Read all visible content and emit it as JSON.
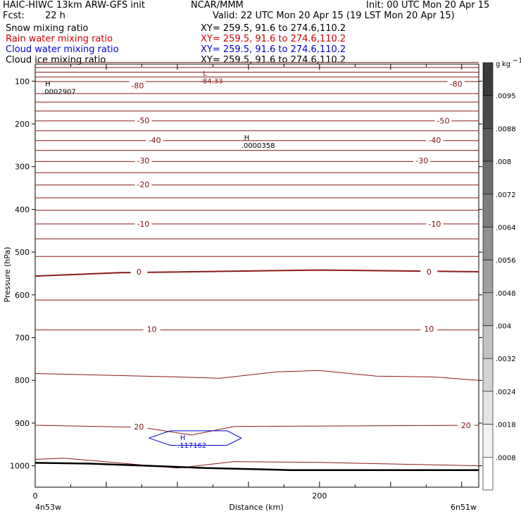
{
  "header": {
    "title_left": "HAIC-HIWC 13km ARW-GFS init",
    "title_center": "NCAR/MMM",
    "init": "Init: 00 UTC Mon 20 Apr 15",
    "fcst_label": "Fcst:",
    "fcst_value": "22 h",
    "valid": "Valid: 22 UTC Mon 20 Apr 15 (19 LST Mon 20 Apr 15)"
  },
  "fields": [
    {
      "name": "Snow mixing ratio",
      "xy": "XY= 259.5, 91.6 to 274.6,110.2",
      "color": "#000000"
    },
    {
      "name": "Rain water mixing ratio",
      "xy": "XY= 259.5, 91.6 to 274.6,110.2",
      "color": "#d00000"
    },
    {
      "name": "Cloud water mixing ratio",
      "xy": "XY= 259.5, 91.6 to 274.6,110.2",
      "color": "#0000d0"
    },
    {
      "name": "Cloud ice mixing ratio",
      "xy": "XY= 259.5, 91.6 to 274.6,110.2",
      "color": "#000000"
    }
  ],
  "chart_data": {
    "type": "cross-section contour",
    "xlabel": "Distance (km)",
    "ylabel": "Pressure (hPa)",
    "xlim": [
      0,
      312
    ],
    "ylim": [
      1050,
      60
    ],
    "x_ticks": [
      0,
      200
    ],
    "y_ticks": [
      100,
      200,
      300,
      400,
      500,
      600,
      700,
      800,
      900,
      1000
    ],
    "x_endpoint_labels": {
      "left": "4n53w",
      "right": "6n51w"
    },
    "temperature_contours": [
      {
        "label": "-80",
        "points": [
          [
            0,
            101
          ],
          [
            312,
            101
          ]
        ],
        "marks": [
          [
            72,
            110
          ],
          [
            296,
            106
          ]
        ]
      },
      {
        "label": "-50",
        "points": [
          [
            0,
            193
          ],
          [
            312,
            193
          ]
        ],
        "marks": [
          [
            76,
            192
          ],
          [
            287,
            193
          ]
        ]
      },
      {
        "label": "-40",
        "points": [
          [
            0,
            239
          ],
          [
            312,
            239
          ]
        ],
        "marks": [
          [
            84,
            238
          ],
          [
            281,
            238
          ]
        ]
      },
      {
        "label": "-30",
        "points": [
          [
            0,
            288
          ],
          [
            312,
            288
          ]
        ],
        "marks": [
          [
            76,
            286
          ],
          [
            272,
            286
          ]
        ]
      },
      {
        "label": "-20",
        "points": [
          [
            0,
            343
          ],
          [
            312,
            343
          ]
        ],
        "marks": [
          [
            76,
            342
          ],
          [
            0,
            0
          ]
        ]
      },
      {
        "label": "-10",
        "points": [
          [
            0,
            434
          ],
          [
            312,
            434
          ]
        ],
        "marks": [
          [
            76,
            434
          ],
          [
            281,
            434
          ]
        ]
      },
      {
        "label": "0",
        "points": [
          [
            0,
            556
          ],
          [
            60,
            548
          ],
          [
            200,
            542
          ],
          [
            312,
            546
          ]
        ],
        "marks": [
          [
            73,
            546
          ],
          [
            277,
            546
          ]
        ]
      },
      {
        "label": "10",
        "points": [
          [
            0,
            682
          ],
          [
            312,
            682
          ]
        ],
        "marks": [
          [
            82,
            680
          ],
          [
            277,
            679
          ]
        ]
      },
      {
        "label": "20",
        "points": [
          [
            0,
            905
          ],
          [
            75,
            910
          ],
          [
            110,
            928
          ],
          [
            140,
            908
          ],
          [
            312,
            905
          ]
        ],
        "marks": [
          [
            73,
            908
          ],
          [
            303,
            905
          ]
        ]
      }
    ],
    "unlabeled_contours": [
      {
        "points": [
          [
            0,
            56
          ],
          [
            312,
            56
          ]
        ]
      },
      {
        "points": [
          [
            0,
            68
          ],
          [
            312,
            68
          ]
        ]
      },
      {
        "points": [
          [
            0,
            79
          ],
          [
            312,
            79
          ]
        ]
      },
      {
        "points": [
          [
            0,
            90
          ],
          [
            312,
            90
          ]
        ]
      },
      {
        "points": [
          [
            0,
            129
          ],
          [
            312,
            129
          ]
        ]
      },
      {
        "points": [
          [
            0,
            149
          ],
          [
            312,
            149
          ]
        ]
      },
      {
        "points": [
          [
            0,
            170
          ],
          [
            312,
            170
          ]
        ]
      },
      {
        "points": [
          [
            0,
            216
          ],
          [
            312,
            216
          ]
        ]
      },
      {
        "points": [
          [
            0,
            262
          ],
          [
            312,
            262
          ]
        ]
      },
      {
        "points": [
          [
            0,
            314
          ],
          [
            312,
            314
          ]
        ]
      },
      {
        "points": [
          [
            0,
            373
          ],
          [
            312,
            373
          ]
        ]
      },
      {
        "points": [
          [
            0,
            402
          ],
          [
            312,
            402
          ]
        ]
      },
      {
        "points": [
          [
            0,
            469
          ],
          [
            312,
            469
          ]
        ]
      },
      {
        "points": [
          [
            0,
            510
          ],
          [
            312,
            510
          ]
        ]
      },
      {
        "points": [
          [
            0,
            612
          ],
          [
            312,
            612
          ]
        ]
      },
      {
        "points": [
          [
            0,
            784
          ],
          [
            100,
            792
          ],
          [
            130,
            795
          ],
          [
            170,
            780
          ],
          [
            200,
            777
          ],
          [
            240,
            790
          ],
          [
            280,
            792
          ],
          [
            312,
            800
          ]
        ]
      },
      {
        "points": [
          [
            0,
            985
          ],
          [
            20,
            982
          ],
          [
            100,
            1005
          ],
          [
            140,
            990
          ],
          [
            200,
            992
          ],
          [
            312,
            1000
          ]
        ]
      }
    ],
    "terrain": {
      "points": [
        [
          0,
          993
        ],
        [
          40,
          995
        ],
        [
          120,
          1005
        ],
        [
          180,
          1010
        ],
        [
          312,
          1010
        ]
      ]
    },
    "cloud_water_contour": {
      "points": [
        [
          80,
          935
        ],
        [
          95,
          918
        ],
        [
          135,
          918
        ],
        [
          145,
          935
        ],
        [
          135,
          952
        ],
        [
          95,
          952
        ],
        [
          80,
          935
        ]
      ]
    },
    "extrema": [
      {
        "type": "L",
        "value": "-84.33",
        "x": 116,
        "p": 87
      },
      {
        "type": "H",
        "value": ".0002907",
        "x": 5,
        "p": 112
      },
      {
        "type": "H",
        "value": ".0000358",
        "x": 145,
        "p": 238
      },
      {
        "type": "H",
        "value": ".117162",
        "x": 100,
        "p": 940
      }
    ],
    "colorbar": {
      "unit_a": "g",
      "unit_b": "kg",
      "unit_exp": "−1",
      "labels": [
        ".0095",
        ".0088",
        ".008",
        ".0072",
        ".0064",
        ".0056",
        ".0048",
        ".004",
        ".0032",
        ".0024",
        ".0018",
        ".0008"
      ],
      "colors": [
        "#3a3a3a",
        "#4b4b4b",
        "#5c5c5c",
        "#6d6d6d",
        "#7e7e7e",
        "#8f8f8f",
        "#a0a0a0",
        "#b1b1b1",
        "#c2c2c2",
        "#d3d3d3",
        "#e4e4e4",
        "#f2f2f2",
        "#ffffff"
      ]
    }
  }
}
